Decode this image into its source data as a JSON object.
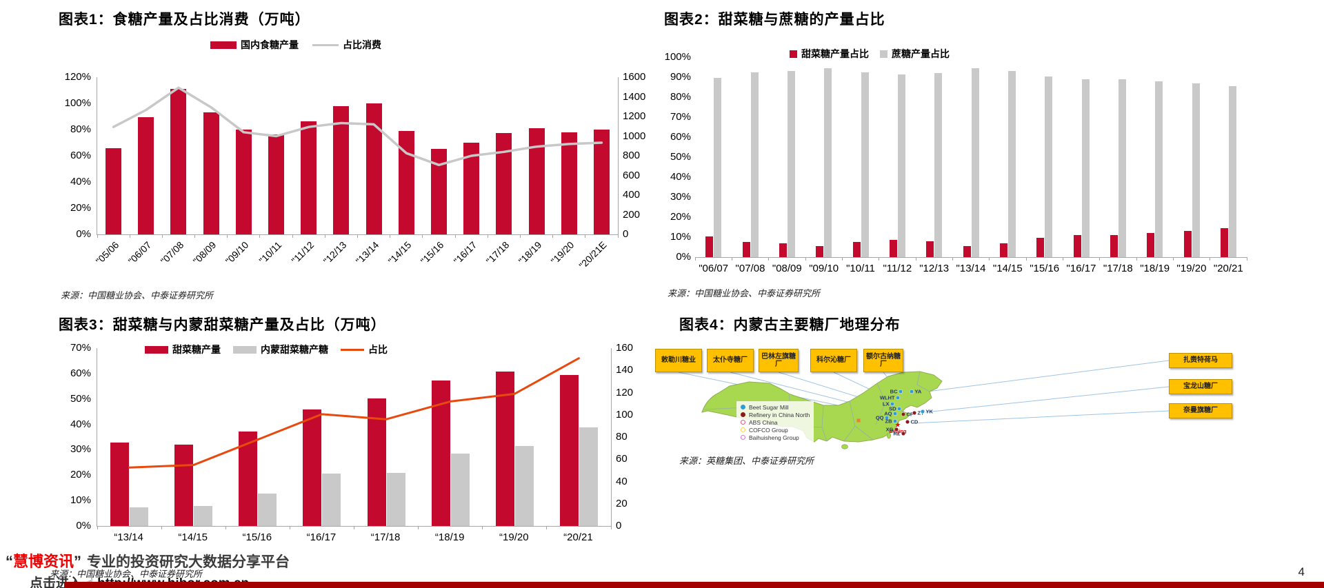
{
  "page": {
    "number": "4",
    "watermark_open": "“",
    "watermark_brand": "慧博资讯",
    "watermark_close": "”",
    "watermark_tagline": "专业的投资研究大数据分享平台",
    "footer_prefix": "点击进入",
    "footer_hand": "☝",
    "footer_url": "http://www.hibor.com.cn"
  },
  "colors": {
    "accent_red": "#c3092e",
    "bar_gray": "#c9c9c9",
    "line_gray": "#c8c8c8",
    "line_orange": "#e8490e",
    "map_green": "#a8d84f",
    "box_yellow": "#ffc000",
    "footer_bar": "#a50000"
  },
  "chart_data": [
    {
      "id": "c1",
      "type": "bar+line",
      "title": "图表1：食糖产量及占比消费（万吨）",
      "categories": [
        "\"05/06",
        "\"06/07",
        "\"07/08",
        "\"08/09",
        "\"09/10",
        "\"10/11",
        "\"11/12",
        "\"12/13",
        "\"13/14",
        "\"14/15",
        "\"15/16",
        "\"16/17",
        "\"17/18",
        "\"18/19",
        "\"19/20",
        "\"20/21E"
      ],
      "series": [
        {
          "name": "国内食糖产量",
          "type": "bar",
          "axis": "right",
          "color": "#c3092e",
          "values": [
            880,
            1195,
            1480,
            1240,
            1070,
            1015,
            1150,
            1305,
            1330,
            1055,
            870,
            930,
            1030,
            1080,
            1040,
            1065
          ]
        },
        {
          "name": "占比消费",
          "type": "line",
          "axis": "left",
          "color": "#c8c8c8",
          "values": [
            82,
            95,
            112,
            97,
            78,
            75,
            82,
            85,
            84,
            62,
            53,
            60,
            63,
            67,
            69,
            70
          ]
        }
      ],
      "left_axis": {
        "min": 0,
        "max": 120,
        "unit": "%",
        "labels": [
          "120%",
          "100%",
          "80%",
          "60%",
          "40%",
          "20%",
          "0%"
        ]
      },
      "right_axis": {
        "min": 0,
        "max": 1600,
        "labels": [
          "1600",
          "1400",
          "1200",
          "1000",
          "800",
          "600",
          "400",
          "200",
          "0"
        ]
      },
      "legend_position": "top",
      "grid": false,
      "source": "来源：中国糖业协会、中泰证券研究所"
    },
    {
      "id": "c2",
      "type": "bar",
      "title": "图表2：甜菜糖与蔗糖的产量占比",
      "categories": [
        "\"06/07",
        "\"07/08",
        "\"08/09",
        "\"09/10",
        "\"10/11",
        "\"11/12",
        "\"12/13",
        "\"13/14",
        "\"14/15",
        "\"15/16",
        "\"16/17",
        "\"17/18",
        "\"18/19",
        "\"19/20",
        "\"20/21"
      ],
      "series": [
        {
          "name": "甜菜糖产量占比",
          "type": "bar",
          "axis": "left",
          "color": "#c3092e",
          "values": [
            10.5,
            7.5,
            7,
            5.5,
            7.5,
            8.5,
            8,
            5.5,
            7,
            9.5,
            11,
            11,
            12,
            13,
            14.5
          ]
        },
        {
          "name": "蔗糖产量占比",
          "type": "bar",
          "axis": "left",
          "color": "#c9c9c9",
          "values": [
            89.5,
            92.5,
            93,
            94.5,
            92.5,
            91.5,
            92,
            94.5,
            93,
            90.5,
            89,
            89,
            88,
            87,
            85.5
          ]
        }
      ],
      "left_axis": {
        "min": 0,
        "max": 100,
        "unit": "%",
        "labels": [
          "100%",
          "90%",
          "80%",
          "70%",
          "60%",
          "50%",
          "40%",
          "30%",
          "20%",
          "10%",
          "0%"
        ]
      },
      "legend_position": "top",
      "grid": false,
      "source": "来源：中国糖业协会、中泰证券研究所"
    },
    {
      "id": "c3",
      "type": "bar+line",
      "title": "图表3：甜菜糖与内蒙甜菜糖产量及占比（万吨）",
      "categories": [
        "“13/14",
        "“14/15",
        "“15/16",
        "“16/17",
        "“17/18",
        "“18/19",
        "“19/20",
        "“20/21"
      ],
      "series": [
        {
          "name": "甜菜糖产量",
          "type": "bar",
          "axis": "right",
          "color": "#c3092e",
          "values": [
            75,
            73,
            85,
            105,
            115,
            131,
            139,
            136
          ]
        },
        {
          "name": "内蒙甜菜糖产糖",
          "type": "bar",
          "axis": "right",
          "color": "#c9c9c9",
          "values": [
            17,
            18,
            29,
            47,
            48,
            65,
            72,
            89
          ]
        },
        {
          "name": "占比",
          "type": "line",
          "axis": "left",
          "color": "#e8490e",
          "values": [
            23,
            24,
            34,
            44,
            42,
            49,
            52,
            66
          ]
        }
      ],
      "left_axis": {
        "min": 0,
        "max": 70,
        "unit": "%",
        "labels": [
          "70%",
          "60%",
          "50%",
          "40%",
          "30%",
          "20%",
          "10%",
          "0%"
        ]
      },
      "right_axis": {
        "min": 0,
        "max": 160,
        "labels": [
          "160",
          "140",
          "120",
          "100",
          "80",
          "60",
          "40",
          "20",
          "0"
        ]
      },
      "legend_position": "top",
      "grid": false,
      "source": "来源：中国糖业协会、中泰证券研究所"
    },
    {
      "id": "map1",
      "type": "map",
      "title": "图表4：内蒙古主要糖厂地理分布",
      "factories_top": [
        "敕勒川糖业",
        "太仆寺糖厂",
        "巴林左旗糖厂",
        "科尔沁糖厂",
        "额尔古纳糖厂"
      ],
      "factories_right": [
        "扎赉特荷马",
        "宝龙山糖厂",
        "奈曼旗糖厂"
      ],
      "markers": [
        {
          "label": "BC",
          "x": 366,
          "y": 70,
          "color": "#2e9bd6",
          "side": "left"
        },
        {
          "label": "YA",
          "x": 382,
          "y": 70,
          "color": "#2e9bd6",
          "side": "right"
        },
        {
          "label": "WLHT",
          "x": 362,
          "y": 79,
          "color": "#2e9bd6",
          "side": "left"
        },
        {
          "label": "LX",
          "x": 354,
          "y": 88,
          "color": "#2e9bd6",
          "side": "left"
        },
        {
          "label": "SD",
          "x": 364,
          "y": 95,
          "color": "#2e9bd6",
          "side": "left"
        },
        {
          "label": "AQ",
          "x": 358,
          "y": 102,
          "color": "#2e9bd6",
          "side": "left"
        },
        {
          "label": "CF",
          "x": 370,
          "y": 103,
          "color": "#8b1a1a",
          "side": "right"
        },
        {
          "label": "ZY",
          "x": 386,
          "y": 101,
          "color": "#8b1a1a",
          "side": "right"
        },
        {
          "label": "YK",
          "x": 398,
          "y": 99,
          "color": "#2e9bd6",
          "side": "right"
        },
        {
          "label": "QQ",
          "x": 346,
          "y": 108,
          "color": "#2e9bd6",
          "side": "left"
        },
        {
          "label": "ZB",
          "x": 358,
          "y": 113,
          "color": "#2e9bd6",
          "side": "left"
        },
        {
          "label": "CD",
          "x": 376,
          "y": 114,
          "color": "#8b1a1a",
          "side": "right"
        },
        {
          "label": "Beijing",
          "x": 362,
          "y": 118,
          "color": "#ff0000",
          "shape": "star",
          "side": "below"
        },
        {
          "label": "XG",
          "x": 360,
          "y": 125,
          "color": "#8b1a1a",
          "side": "left"
        },
        {
          "label": "RZ",
          "x": 370,
          "y": 131,
          "color": "#8b1a1a",
          "side": "left"
        },
        {
          "label": "",
          "x": 305,
          "y": 112,
          "color": "#ed7d31",
          "shape": "square"
        }
      ],
      "legend": [
        {
          "label": "Beet Sugar Mill",
          "color": "#2e9bd6",
          "filled": true
        },
        {
          "label": "Refinery in China North",
          "color": "#8b1a1a",
          "filled": true
        },
        {
          "label": "ABS China",
          "color": "#e75480",
          "filled": false
        },
        {
          "label": "COFCO Group",
          "color": "#ffd24d",
          "filled": false
        },
        {
          "label": "Baihuisheng Group",
          "color": "#da70d6",
          "filled": false
        }
      ],
      "source": "来源：英糖集团、中泰证券研究所"
    }
  ]
}
